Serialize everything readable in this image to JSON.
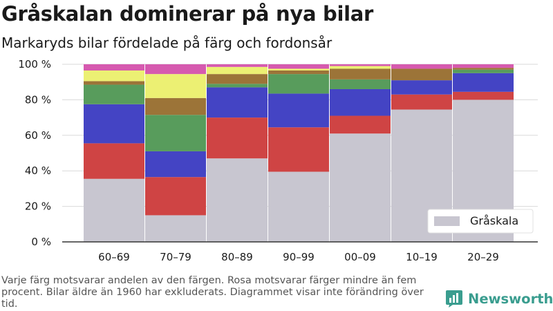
{
  "title": "Gråskalan dominerar på nya bilar",
  "subtitle": "Markaryds bilar fördelade på färg och fordonsår",
  "footnote": "Varje färg motsvarar andelen av den färgen. Rosa motsvarar färger mindre än fem procent. Bilar äldre än 1960 har exkluderats. Diagrammet visar inte förändring över tid.",
  "brand": {
    "name": "Newsworthy",
    "icon": "newsworthy-logo-icon"
  },
  "chart_data": {
    "type": "bar",
    "stacked": true,
    "categories": [
      "60–69",
      "70–79",
      "80–89",
      "90–99",
      "00–09",
      "10–19",
      "20–29"
    ],
    "ylim": [
      0,
      100
    ],
    "yticks": [
      0,
      20,
      40,
      60,
      80,
      100
    ],
    "ytick_labels": [
      "0 %",
      "20 %",
      "40 %",
      "60 %",
      "80 %",
      "100 %"
    ],
    "grid": true,
    "legend": {
      "position": "bottom-right",
      "entries": [
        "Gråskala"
      ]
    },
    "series": [
      {
        "name": "Gråskala",
        "color": "#c8c6d0",
        "values": [
          35.5,
          15,
          47,
          39.5,
          61,
          74.5,
          80
        ]
      },
      {
        "color": "#cf4444",
        "values": [
          20,
          21.5,
          23,
          25,
          10,
          8.5,
          4.5
        ]
      },
      {
        "color": "#4444c4",
        "values": [
          22,
          14.5,
          17,
          19,
          15,
          8,
          10.5
        ]
      },
      {
        "color": "#589c5c",
        "values": [
          11,
          20.5,
          2,
          11,
          5.5,
          0,
          2
        ]
      },
      {
        "color": "#9c7438",
        "values": [
          2,
          9.5,
          5.5,
          2,
          6,
          6.5,
          1
        ]
      },
      {
        "color": "#ecf073",
        "values": [
          6,
          13.5,
          4,
          1,
          1.5,
          0,
          0
        ]
      },
      {
        "color": "#d65aaf",
        "values": [
          3.5,
          5.5,
          1.5,
          2.5,
          1,
          2.5,
          2
        ]
      }
    ]
  }
}
